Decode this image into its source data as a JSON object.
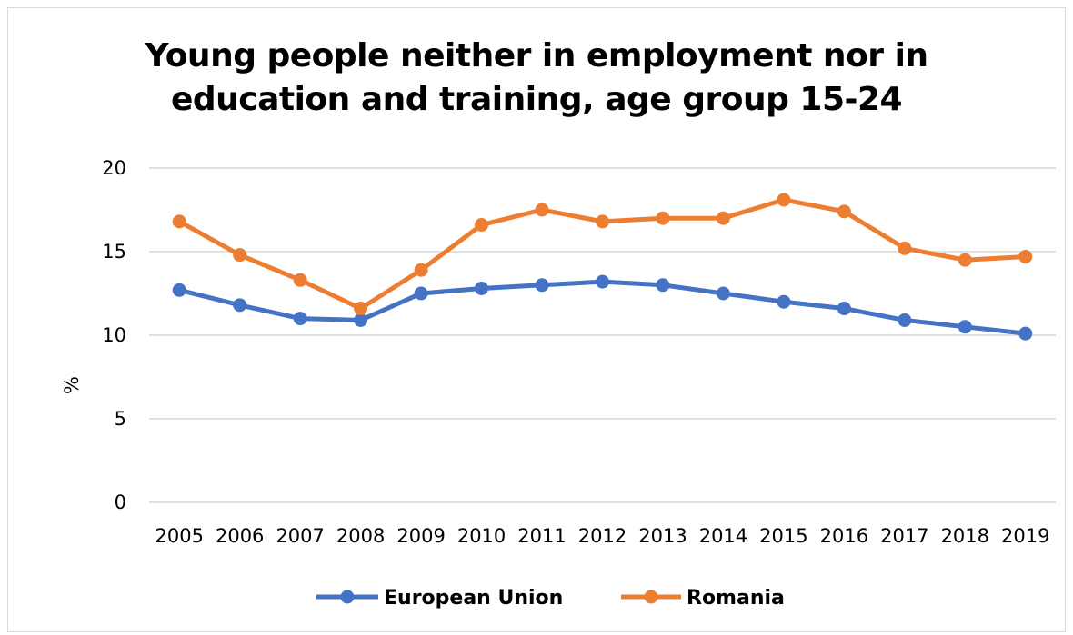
{
  "chart_data": {
    "type": "line",
    "title_lines": [
      "Young people neither in employment nor in",
      "education and training, age group 15-24"
    ],
    "ylabel": "%",
    "xlabel": "",
    "ylim": [
      0,
      20
    ],
    "yticks": [
      "0",
      "5",
      "10",
      "15",
      "20"
    ],
    "categories": [
      "2005",
      "2006",
      "2007",
      "2008",
      "2009",
      "2010",
      "2011",
      "2012",
      "2013",
      "2014",
      "2015",
      "2016",
      "2017",
      "2018",
      "2019"
    ],
    "grid": "horizontal",
    "legend_position": "bottom",
    "series": [
      {
        "name": "European Union",
        "color": "#4472c4",
        "values": [
          12.7,
          11.8,
          11.0,
          10.9,
          12.5,
          12.8,
          13.0,
          13.2,
          13.0,
          12.5,
          12.0,
          11.6,
          10.9,
          10.5,
          10.1
        ]
      },
      {
        "name": "Romania",
        "color": "#ed7d31",
        "values": [
          16.8,
          14.8,
          13.3,
          11.6,
          13.9,
          16.6,
          17.5,
          16.8,
          17.0,
          17.0,
          18.1,
          17.4,
          15.2,
          14.5,
          14.7
        ]
      }
    ]
  }
}
